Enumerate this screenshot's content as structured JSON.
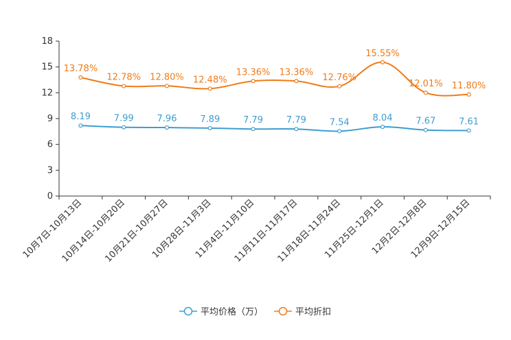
{
  "chart_data": {
    "type": "line",
    "categories": [
      "10月7日-10月13日",
      "10月14日-10月20日",
      "10月21日-10月27日",
      "10月28日-11月3日",
      "11月4日-11月10日",
      "11月11日-11月17日",
      "11月18日-11月24日",
      "11月25日-12月1日",
      "12月2日-12月8日",
      "12月9日-12月15日"
    ],
    "series": [
      {
        "name": "平均价格（万）",
        "color": "#3d9dd0",
        "values": [
          8.19,
          7.99,
          7.96,
          7.89,
          7.79,
          7.79,
          7.54,
          8.04,
          7.67,
          7.61
        ],
        "labels": [
          "8.19",
          "7.99",
          "7.96",
          "7.89",
          "7.79",
          "7.79",
          "7.54",
          "8.04",
          "7.67",
          "7.61"
        ]
      },
      {
        "name": "平均折扣",
        "color": "#f07a17",
        "values": [
          13.78,
          12.78,
          12.8,
          12.48,
          13.36,
          13.36,
          12.76,
          15.55,
          12.01,
          11.8
        ],
        "labels": [
          "13.78%",
          "12.78%",
          "12.80%",
          "12.48%",
          "13.36%",
          "13.36%",
          "12.76%",
          "15.55%",
          "12.01%",
          "11.80%"
        ]
      }
    ],
    "y_ticks": [
      0,
      3,
      6,
      9,
      12,
      15,
      18
    ],
    "y_tick_labels": [
      "0",
      "3",
      "6",
      "9",
      "12",
      "15",
      "18"
    ],
    "ylim": [
      0,
      18
    ],
    "title": "",
    "xlabel": "",
    "ylabel": "",
    "grid": false,
    "legend_position": "bottom"
  }
}
